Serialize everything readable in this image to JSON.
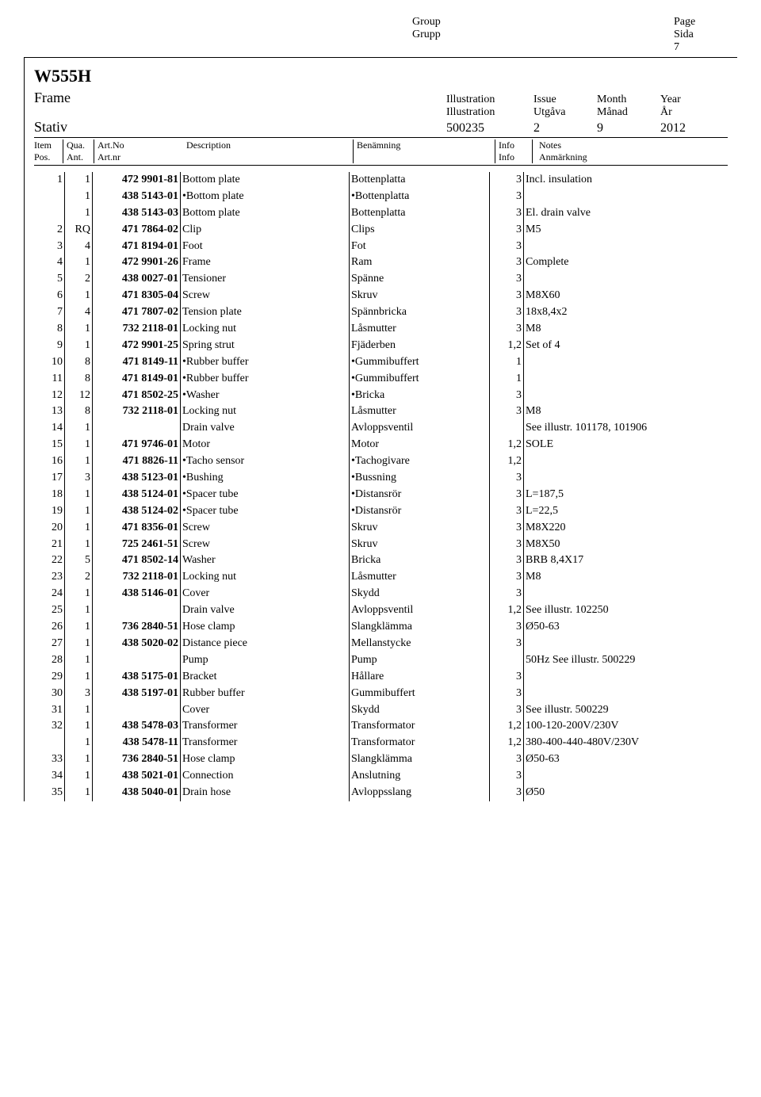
{
  "header": {
    "group_en": "Group",
    "group_sv": "Grupp",
    "page_en": "Page",
    "page_sv": "Sida",
    "page_number": "7"
  },
  "doc": {
    "title": "W555H",
    "subtitle_en": "Frame",
    "subtitle_sv": "Stativ",
    "meta_labels": {
      "illustration_en": "Illustration",
      "illustration_sv": "Illustration",
      "issue_en": "Issue",
      "issue_sv": "Utgåva",
      "month_en": "Month",
      "month_sv": "Månad",
      "year_en": "Year",
      "year_sv": "År"
    },
    "meta_values": {
      "illustration": "500235",
      "issue": "2",
      "month": "9",
      "year": "2012"
    }
  },
  "columns": {
    "item_en": "Item",
    "item_sv": "Pos.",
    "qua_en": "Qua.",
    "qua_sv": "Ant.",
    "art_en": "Art.No",
    "art_sv": "Art.nr",
    "desc_en": "Description",
    "ben_sv": "Benämning",
    "info": "Info",
    "info2": "Info",
    "notes_en": "Notes",
    "notes_sv": "Anmärkning"
  },
  "rows": [
    {
      "item": "1",
      "qua": "1",
      "art": "472 9901-81",
      "desc": "Bottom plate",
      "ben": "Bottenplatta",
      "info": "3",
      "notes": "Incl. insulation"
    },
    {
      "item": "",
      "qua": "1",
      "art": "438 5143-01",
      "desc": "•Bottom plate",
      "ben": "•Bottenplatta",
      "info": "3",
      "notes": ""
    },
    {
      "item": "",
      "qua": "1",
      "art": "438 5143-03",
      "desc": "Bottom plate",
      "ben": "Bottenplatta",
      "info": "3",
      "notes": "El. drain valve"
    },
    {
      "item": "2",
      "qua": "RQ",
      "art": "471 7864-02",
      "desc": "Clip",
      "ben": "Clips",
      "info": "3",
      "notes": "M5"
    },
    {
      "item": "3",
      "qua": "4",
      "art": "471 8194-01",
      "desc": "Foot",
      "ben": "Fot",
      "info": "3",
      "notes": ""
    },
    {
      "item": "4",
      "qua": "1",
      "art": "472 9901-26",
      "desc": "Frame",
      "ben": "Ram",
      "info": "3",
      "notes": "Complete"
    },
    {
      "item": "5",
      "qua": "2",
      "art": "438 0027-01",
      "desc": "Tensioner",
      "ben": "Spänne",
      "info": "3",
      "notes": ""
    },
    {
      "item": "6",
      "qua": "1",
      "art": "471 8305-04",
      "desc": "Screw",
      "ben": "Skruv",
      "info": "3",
      "notes": "M8X60"
    },
    {
      "item": "7",
      "qua": "4",
      "art": "471 7807-02",
      "desc": "Tension plate",
      "ben": "Spännbricka",
      "info": "3",
      "notes": "18x8,4x2"
    },
    {
      "item": "8",
      "qua": "1",
      "art": "732 2118-01",
      "desc": "Locking nut",
      "ben": "Låsmutter",
      "info": "3",
      "notes": "M8"
    },
    {
      "item": "9",
      "qua": "1",
      "art": "472 9901-25",
      "desc": "Spring strut",
      "ben": "Fjäderben",
      "info": "1,2",
      "notes": "Set of 4"
    },
    {
      "item": "10",
      "qua": "8",
      "art": "471 8149-11",
      "desc": "•Rubber buffer",
      "ben": "•Gummibuffert",
      "info": "1",
      "notes": ""
    },
    {
      "item": "11",
      "qua": "8",
      "art": "471 8149-01",
      "desc": "•Rubber buffer",
      "ben": "•Gummibuffert",
      "info": "1",
      "notes": ""
    },
    {
      "item": "12",
      "qua": "12",
      "art": "471 8502-25",
      "desc": "•Washer",
      "ben": "•Bricka",
      "info": "3",
      "notes": ""
    },
    {
      "item": "13",
      "qua": "8",
      "art": "732 2118-01",
      "desc": "Locking nut",
      "ben": "Låsmutter",
      "info": "3",
      "notes": "M8"
    },
    {
      "item": "14",
      "qua": "1",
      "art": "",
      "desc": "Drain valve",
      "ben": "Avloppsventil",
      "info": "",
      "notes": "See illustr. 101178, 101906"
    },
    {
      "item": "15",
      "qua": "1",
      "art": "471 9746-01",
      "desc": "Motor",
      "ben": "Motor",
      "info": "1,2",
      "notes": "SOLE"
    },
    {
      "item": "16",
      "qua": "1",
      "art": "471 8826-11",
      "desc": "•Tacho sensor",
      "ben": "•Tachogivare",
      "info": "1,2",
      "notes": ""
    },
    {
      "item": "17",
      "qua": "3",
      "art": "438 5123-01",
      "desc": "•Bushing",
      "ben": "•Bussning",
      "info": "3",
      "notes": ""
    },
    {
      "item": "18",
      "qua": "1",
      "art": "438 5124-01",
      "desc": "•Spacer tube",
      "ben": "•Distansrör",
      "info": "3",
      "notes": "L=187,5"
    },
    {
      "item": "19",
      "qua": "1",
      "art": "438 5124-02",
      "desc": "•Spacer tube",
      "ben": "•Distansrör",
      "info": "3",
      "notes": "L=22,5"
    },
    {
      "item": "20",
      "qua": "1",
      "art": "471 8356-01",
      "desc": "Screw",
      "ben": "Skruv",
      "info": "3",
      "notes": "M8X220"
    },
    {
      "item": "21",
      "qua": "1",
      "art": "725 2461-51",
      "desc": "Screw",
      "ben": "Skruv",
      "info": "3",
      "notes": "M8X50"
    },
    {
      "item": "22",
      "qua": "5",
      "art": "471 8502-14",
      "desc": "Washer",
      "ben": "Bricka",
      "info": "3",
      "notes": "BRB 8,4X17"
    },
    {
      "item": "23",
      "qua": "2",
      "art": "732 2118-01",
      "desc": "Locking nut",
      "ben": "Låsmutter",
      "info": "3",
      "notes": "M8"
    },
    {
      "item": "24",
      "qua": "1",
      "art": "438 5146-01",
      "desc": "Cover",
      "ben": "Skydd",
      "info": "3",
      "notes": ""
    },
    {
      "item": "25",
      "qua": "1",
      "art": "",
      "desc": "Drain valve",
      "ben": "Avloppsventil",
      "info": "1,2",
      "notes": "See illustr. 102250"
    },
    {
      "item": "26",
      "qua": "1",
      "art": "736 2840-51",
      "desc": "Hose clamp",
      "ben": "Slangklämma",
      "info": "3",
      "notes": "Ø50-63"
    },
    {
      "item": "27",
      "qua": "1",
      "art": "438 5020-02",
      "desc": "Distance piece",
      "ben": "Mellanstycke",
      "info": "3",
      "notes": ""
    },
    {
      "item": "28",
      "qua": "1",
      "art": "",
      "desc": "Pump",
      "ben": "Pump",
      "info": "",
      "notes": "50Hz  See illustr. 500229"
    },
    {
      "item": "29",
      "qua": "1",
      "art": "438 5175-01",
      "desc": "Bracket",
      "ben": "Hållare",
      "info": "3",
      "notes": ""
    },
    {
      "item": "30",
      "qua": "3",
      "art": "438 5197-01",
      "desc": "Rubber buffer",
      "ben": "Gummibuffert",
      "info": "3",
      "notes": ""
    },
    {
      "item": "31",
      "qua": "1",
      "art": "",
      "desc": "Cover",
      "ben": "Skydd",
      "info": "3",
      "notes": "See illustr. 500229"
    },
    {
      "item": "32",
      "qua": "1",
      "art": "438 5478-03",
      "desc": "Transformer",
      "ben": "Transformator",
      "info": "1,2",
      "notes": "100-120-200V/230V"
    },
    {
      "item": "",
      "qua": "1",
      "art": "438 5478-11",
      "desc": "Transformer",
      "ben": "Transformator",
      "info": "1,2",
      "notes": "380-400-440-480V/230V"
    },
    {
      "item": "33",
      "qua": "1",
      "art": "736 2840-51",
      "desc": "Hose clamp",
      "ben": "Slangklämma",
      "info": "3",
      "notes": "Ø50-63"
    },
    {
      "item": "34",
      "qua": "1",
      "art": "438 5021-01",
      "desc": "Connection",
      "ben": "Anslutning",
      "info": "3",
      "notes": ""
    },
    {
      "item": "35",
      "qua": "1",
      "art": "438 5040-01",
      "desc": "Drain hose",
      "ben": "Avloppsslang",
      "info": "3",
      "notes": "Ø50"
    }
  ]
}
